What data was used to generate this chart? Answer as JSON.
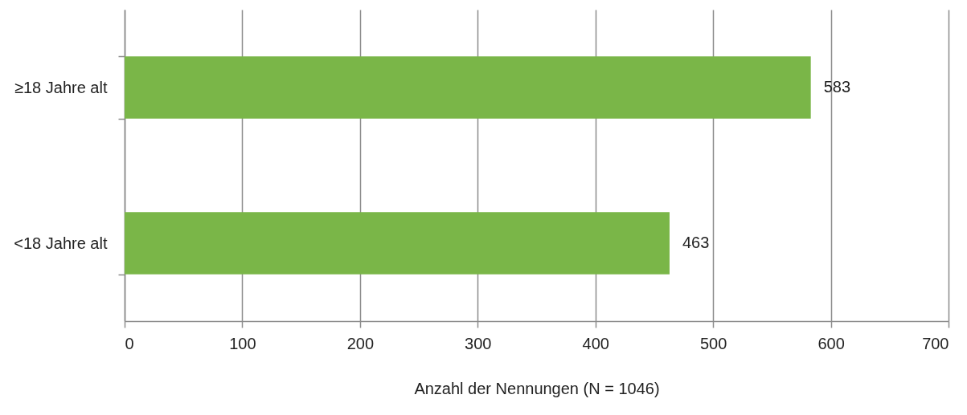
{
  "chart_data": {
    "type": "bar",
    "orientation": "horizontal",
    "xlabel": "Anzahl der Nennungen (N = 1046)",
    "categories": [
      "≥18 Jahre alt",
      "<18 Jahre alt"
    ],
    "values": [
      583,
      463
    ],
    "color": "#7ab648",
    "xlim": [
      0,
      700
    ],
    "xticks": [
      0,
      100,
      200,
      300,
      400,
      500,
      600,
      700
    ],
    "grid": "x",
    "data_labels": true
  }
}
